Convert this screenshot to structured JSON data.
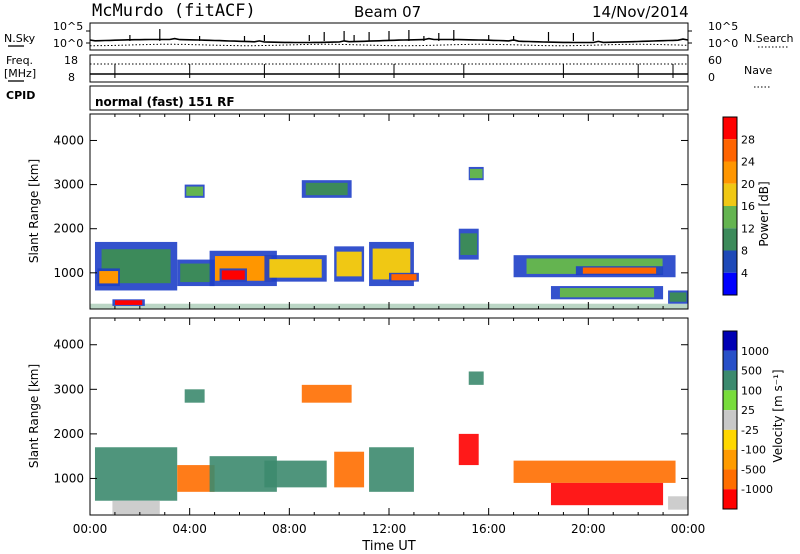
{
  "header": {
    "station": "McMurdo (fitACF)",
    "beam": "Beam 07",
    "date": "14/Nov/2014",
    "cpid_label": "CPID",
    "cpid_value": "normal (fast) 151 RF"
  },
  "aux_panels": {
    "nsky_label": "N.Sky",
    "nsearch_label": "N.Search",
    "nsky_ticks": [
      "10^5",
      "10^0"
    ],
    "nsearch_ticks": [
      "10^5",
      "10^0"
    ],
    "freq_label_1": "Freq.",
    "freq_label_2": "[MHz]",
    "freq_ticks": [
      "18",
      "8"
    ],
    "nave_label": "Nave",
    "nave_ticks": [
      "60",
      "0"
    ]
  },
  "colors": {
    "power_scale": [
      "#0000ff",
      "#1e49b8",
      "#3c8a5a",
      "#64b450",
      "#f0c814",
      "#ff9600",
      "#ff6400",
      "#ff0000"
    ],
    "velocity_scale": [
      "#ff0000",
      "#ff6e00",
      "#ff9b00",
      "#ffd700",
      "#c8c8c8",
      "#78dc3c",
      "#3c8a6e",
      "#2850c8",
      "#0000b4"
    ]
  },
  "chart_data": [
    {
      "type": "heatmap",
      "name": "power",
      "ylabel": "Slant Range [km]",
      "xlabel": "",
      "x_ticks": [
        "00:00",
        "04:00",
        "08:00",
        "12:00",
        "16:00",
        "20:00",
        "00:00"
      ],
      "x_range_hours": [
        0,
        24
      ],
      "y_ticks": [
        1000,
        2000,
        3000,
        4000
      ],
      "ylim": [
        180,
        4600
      ],
      "colorbar_label": "Power [dB]",
      "colorbar_ticks": [
        4,
        8,
        12,
        16,
        20,
        24,
        28
      ],
      "colorbar_range": [
        0,
        30
      ],
      "patches": [
        {
          "t": [
            0.2,
            3.5
          ],
          "r": [
            600,
            1700
          ],
          "v": 8
        },
        {
          "t": [
            0.3,
            1.2
          ],
          "r": [
            700,
            1100
          ],
          "v": 20
        },
        {
          "t": [
            0.9,
            2.2
          ],
          "r": [
            250,
            400
          ],
          "v": 28
        },
        {
          "t": [
            3.5,
            5.0
          ],
          "r": [
            700,
            1300
          ],
          "v": 10
        },
        {
          "t": [
            3.8,
            4.6
          ],
          "r": [
            2700,
            3000
          ],
          "v": 12
        },
        {
          "t": [
            4.8,
            7.5
          ],
          "r": [
            700,
            1500
          ],
          "v": 20
        },
        {
          "t": [
            5.2,
            6.3
          ],
          "r": [
            800,
            1100
          ],
          "v": 28
        },
        {
          "t": [
            7.0,
            9.5
          ],
          "r": [
            800,
            1400
          ],
          "v": 18
        },
        {
          "t": [
            8.5,
            10.5
          ],
          "r": [
            2700,
            3100
          ],
          "v": 10
        },
        {
          "t": [
            9.8,
            11.0
          ],
          "r": [
            800,
            1600
          ],
          "v": 16
        },
        {
          "t": [
            11.2,
            13.0
          ],
          "r": [
            700,
            1700
          ],
          "v": 18
        },
        {
          "t": [
            12.0,
            13.2
          ],
          "r": [
            800,
            1000
          ],
          "v": 26
        },
        {
          "t": [
            14.8,
            15.6
          ],
          "r": [
            1300,
            2000
          ],
          "v": 10
        },
        {
          "t": [
            15.2,
            15.8
          ],
          "r": [
            3100,
            3400
          ],
          "v": 12
        },
        {
          "t": [
            17.0,
            23.5
          ],
          "r": [
            900,
            1400
          ],
          "v": 14
        },
        {
          "t": [
            18.5,
            23.0
          ],
          "r": [
            400,
            700
          ],
          "v": 12
        },
        {
          "t": [
            19.5,
            23.0
          ],
          "r": [
            950,
            1150
          ],
          "v": 24
        },
        {
          "t": [
            23.2,
            24.0
          ],
          "r": [
            300,
            600
          ],
          "v": 8
        }
      ]
    },
    {
      "type": "heatmap",
      "name": "velocity",
      "ylabel": "Slant Range [km]",
      "xlabel": "Time UT",
      "x_ticks": [
        "00:00",
        "04:00",
        "08:00",
        "12:00",
        "16:00",
        "20:00",
        "00:00"
      ],
      "x_range_hours": [
        0,
        24
      ],
      "y_ticks": [
        1000,
        2000,
        3000,
        4000
      ],
      "ylim": [
        180,
        4600
      ],
      "colorbar_label": "Velocity [m s⁻¹]",
      "colorbar_ticks": [
        1000,
        500,
        100,
        25,
        -25,
        -100,
        -500,
        -1000
      ],
      "patches": [
        {
          "t": [
            0.2,
            3.5
          ],
          "r": [
            500,
            1700
          ],
          "v": 100
        },
        {
          "t": [
            0.9,
            2.8
          ],
          "r": [
            200,
            500
          ],
          "v": 0
        },
        {
          "t": [
            3.5,
            5.0
          ],
          "r": [
            700,
            1300
          ],
          "v": -100
        },
        {
          "t": [
            3.8,
            4.6
          ],
          "r": [
            2700,
            3000
          ],
          "v": 100
        },
        {
          "t": [
            4.8,
            7.5
          ],
          "r": [
            700,
            1500
          ],
          "v": 300
        },
        {
          "t": [
            7.0,
            9.5
          ],
          "r": [
            800,
            1400
          ],
          "v": 300
        },
        {
          "t": [
            8.5,
            10.5
          ],
          "r": [
            2700,
            3100
          ],
          "v": -300
        },
        {
          "t": [
            9.8,
            11.0
          ],
          "r": [
            800,
            1600
          ],
          "v": -100
        },
        {
          "t": [
            11.2,
            13.0
          ],
          "r": [
            700,
            1700
          ],
          "v": 300
        },
        {
          "t": [
            14.8,
            15.6
          ],
          "r": [
            1300,
            2000
          ],
          "v": -500
        },
        {
          "t": [
            15.2,
            15.8
          ],
          "r": [
            3100,
            3400
          ],
          "v": 200
        },
        {
          "t": [
            17.0,
            23.5
          ],
          "r": [
            900,
            1400
          ],
          "v": -300
        },
        {
          "t": [
            18.5,
            23.0
          ],
          "r": [
            400,
            900
          ],
          "v": -600
        },
        {
          "t": [
            23.2,
            24.0
          ],
          "r": [
            300,
            600
          ],
          "v": 0
        }
      ]
    }
  ]
}
